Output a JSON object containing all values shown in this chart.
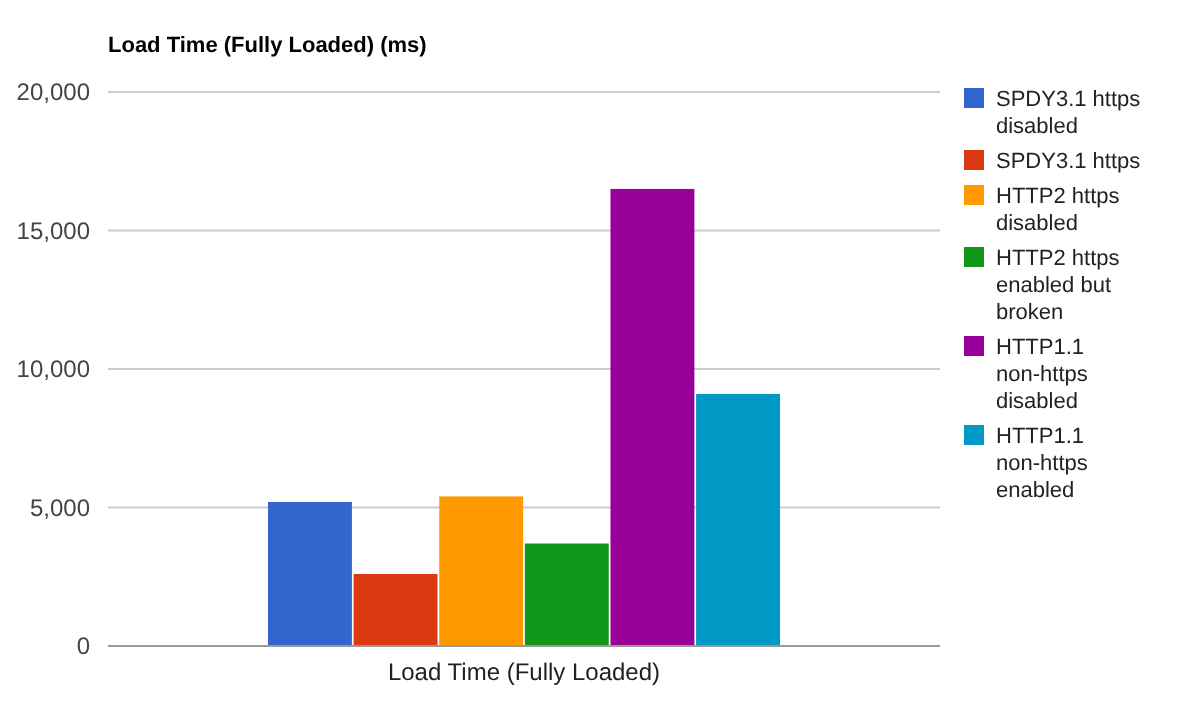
{
  "chart_data": {
    "type": "bar",
    "title": "Load Time (Fully Loaded) (ms)",
    "categories": [
      "Load Time (Fully Loaded)"
    ],
    "series": [
      {
        "name": "SPDY3.1 https disabled",
        "color": "#3366cc",
        "values": [
          5200
        ]
      },
      {
        "name": "SPDY3.1 https",
        "color": "#dc3912",
        "values": [
          2600
        ]
      },
      {
        "name": "HTTP2 https disabled",
        "color": "#ff9900",
        "values": [
          5400
        ]
      },
      {
        "name": "HTTP2 https enabled but broken",
        "color": "#109618",
        "values": [
          3700
        ]
      },
      {
        "name": "HTTP1.1 non-https disabled",
        "color": "#990099",
        "values": [
          16500
        ]
      },
      {
        "name": "HTTP1.1 non-https enabled",
        "color": "#0099c6",
        "values": [
          9100
        ]
      }
    ],
    "ylim": [
      0,
      20000
    ],
    "yticks": [
      {
        "value": 0,
        "label": "0"
      },
      {
        "value": 5000,
        "label": "5,000"
      },
      {
        "value": 10000,
        "label": "10,000"
      },
      {
        "value": 15000,
        "label": "15,000"
      },
      {
        "value": 20000,
        "label": "20,000"
      }
    ],
    "grid": "y",
    "legend": "right"
  }
}
